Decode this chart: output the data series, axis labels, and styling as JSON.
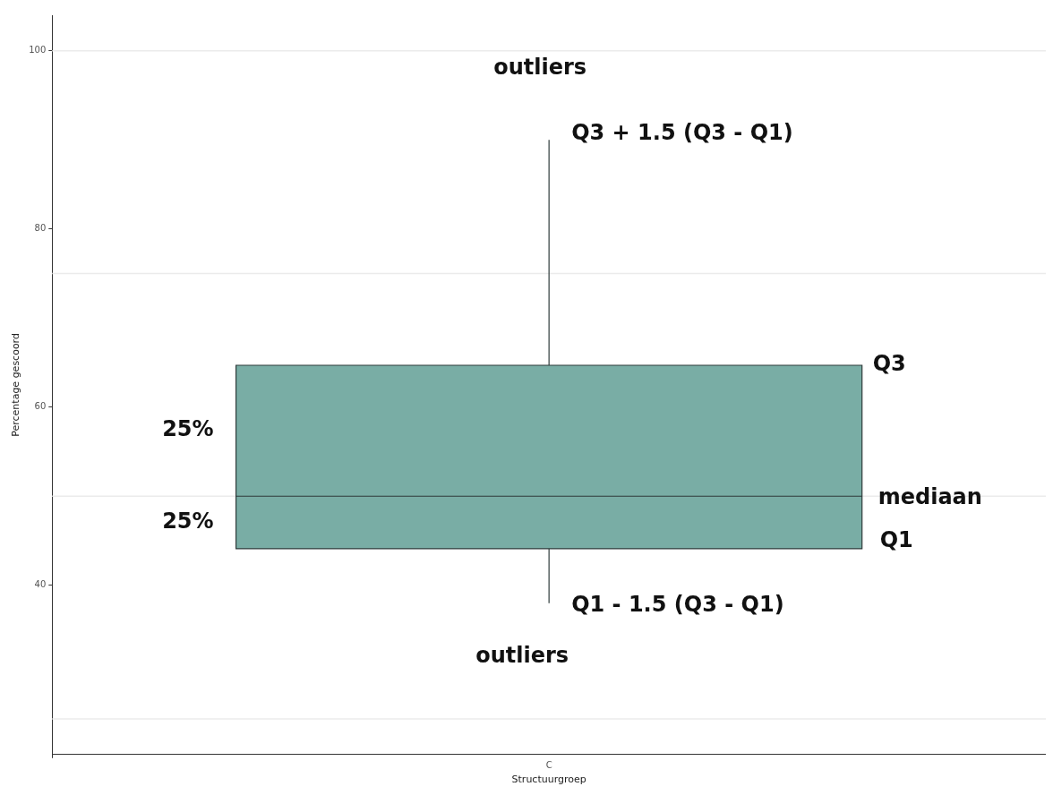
{
  "chart_data": {
    "type": "box",
    "xlabel": "Structuurgroep",
    "ylabel": "Percentage gescoord",
    "categories": [
      "C"
    ],
    "boxes": [
      {
        "low": 38,
        "q1": 44.1,
        "median": 50,
        "q3": 64.7,
        "high": 90
      }
    ],
    "color": "#79ada5",
    "ylim": [
      21,
      104
    ],
    "yticks": [
      40,
      60,
      80,
      100
    ],
    "grid": false,
    "ref_lines": [
      {
        "axis": "y",
        "value": 25,
        "color": "#ebebeb"
      },
      {
        "axis": "y",
        "value": 50,
        "color": "#ebebeb"
      },
      {
        "axis": "y",
        "value": 75,
        "color": "#ebebeb"
      },
      {
        "axis": "y",
        "value": 100,
        "color": "#ebebeb"
      }
    ],
    "annotations": [
      "outliers",
      "Q3 + 1.5 (Q3 - Q1)",
      "Q3",
      "25%",
      "mediaan",
      "25%",
      "Q1",
      "Q1 - 1.5 (Q3 - Q1)",
      "outliers"
    ]
  }
}
